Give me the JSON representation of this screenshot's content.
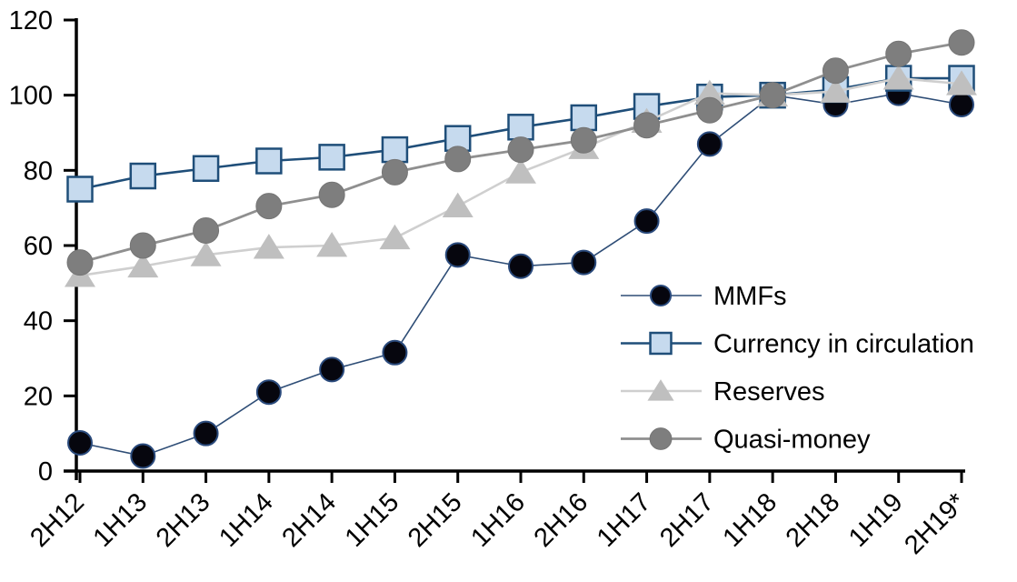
{
  "chart_data": {
    "type": "line",
    "title": "",
    "xlabel": "",
    "ylabel": "",
    "categories": [
      "2H12",
      "1H13",
      "2H13",
      "1H14",
      "2H14",
      "1H15",
      "2H15",
      "1H16",
      "2H16",
      "1H17",
      "2H17",
      "1H18",
      "2H18",
      "1H19",
      "2H19*"
    ],
    "series": [
      {
        "name": "MMFs",
        "marker": "circle",
        "line_color": "#2e4d76",
        "line_width": 1.6,
        "marker_fill": "#06060e",
        "marker_stroke": "#2a4a7c",
        "marker_stroke_width": 2,
        "marker_size": 13,
        "values": [
          7.5,
          4,
          10,
          21,
          27,
          31.5,
          57.5,
          54.5,
          55.5,
          66.5,
          87,
          100,
          97.5,
          100.5,
          97.5
        ]
      },
      {
        "name": "Currency in circulation",
        "marker": "square",
        "line_color": "#1f4e79",
        "line_width": 2.6,
        "marker_fill": "#c6daee",
        "marker_stroke": "#1f4e79",
        "marker_stroke_width": 2.5,
        "marker_size": 13.5,
        "values": [
          75,
          78.5,
          80.5,
          82.5,
          83.5,
          85.5,
          88.5,
          91.5,
          94,
          97,
          99.5,
          100,
          101.5,
          104.5,
          104.5
        ]
      },
      {
        "name": "Reserves",
        "marker": "triangle",
        "line_color": "#cfcfcf",
        "line_width": 2.6,
        "marker_fill": "#bfbfbf",
        "marker_stroke": "#bfbfbf",
        "marker_stroke_width": 1,
        "marker_size": 14,
        "values": [
          52,
          54.5,
          57.5,
          59.5,
          60,
          62,
          70.5,
          79.5,
          86,
          93,
          100.5,
          100,
          101,
          104.5,
          103
        ]
      },
      {
        "name": "Quasi-money",
        "marker": "circle",
        "line_color": "#8f8f8f",
        "line_width": 2.8,
        "marker_fill": "#7e7e7e",
        "marker_stroke": "#757575",
        "marker_stroke_width": 1,
        "marker_size": 14,
        "values": [
          55.5,
          60,
          64,
          70.5,
          73.5,
          79.5,
          83,
          85.5,
          88,
          92,
          96,
          100,
          106.5,
          111,
          114
        ]
      }
    ],
    "y_axis": {
      "min": 0,
      "max": 120,
      "ticks": [
        0,
        20,
        40,
        60,
        80,
        100,
        120
      ]
    },
    "x_axis": {
      "tick_style": "outside",
      "label_rotation_deg": -45
    },
    "legend": {
      "position": "inside-right"
    },
    "grid": "off",
    "axis_color": "#000000",
    "background_color": "#ffffff"
  }
}
